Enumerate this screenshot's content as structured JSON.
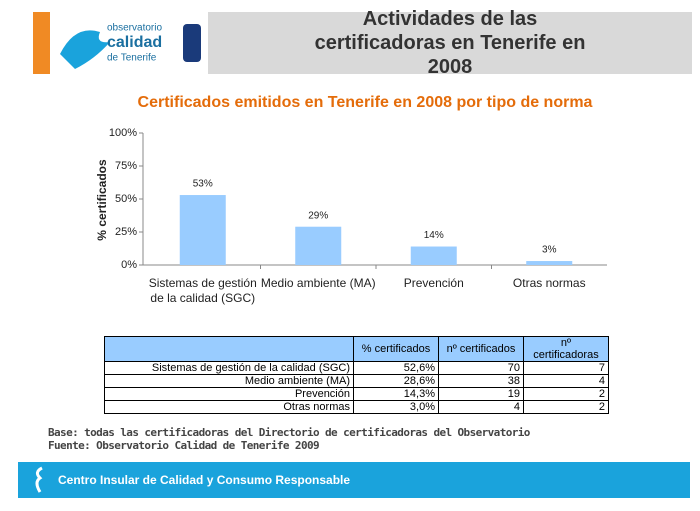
{
  "header": {
    "logo": [
      "observatorio",
      "calidad",
      "de Tenerife"
    ],
    "title": "Actividades de las certificadoras en Tenerife en 2008"
  },
  "chart_data": {
    "type": "bar",
    "title": "Certificados emitidos en Tenerife en 2008 por tipo de norma",
    "y_label": "% certificados",
    "categories": [
      "Sistemas de gestión de la calidad (SGC)",
      "Medio ambiente (MA)",
      "Prevención",
      "Otras normas"
    ],
    "values": [
      53,
      29,
      14,
      3
    ],
    "value_labels": [
      "53%",
      "29%",
      "14%",
      "3%"
    ],
    "color": "#99ccff",
    "ylim": [
      0,
      100
    ],
    "yticks": [
      {
        "value": 0,
        "label": "0%"
      },
      {
        "value": 25,
        "label": "25%"
      },
      {
        "value": 50,
        "label": "50%"
      },
      {
        "value": 75,
        "label": "75%"
      },
      {
        "value": 100,
        "label": "100%"
      }
    ]
  },
  "table": {
    "header": [
      "% certificados",
      "nº certificados",
      "nº certificadoras"
    ],
    "rows": [
      [
        "Sistemas de gestión de la calidad (SGC)",
        "52,6%",
        70,
        7
      ],
      [
        "Medio ambiente (MA)",
        "28,6%",
        38,
        4
      ],
      [
        "Prevención",
        "14,3%",
        19,
        2
      ],
      [
        "Otras normas",
        "3,0%",
        4,
        2
      ]
    ]
  },
  "notes": [
    "Base: todas las certificadoras del Directorio de certificadoras del Observatorio",
    "Fuente: Observatorio Calidad de Tenerife 2009"
  ],
  "footer": "Centro Insular de Calidad y Consumo Responsable"
}
